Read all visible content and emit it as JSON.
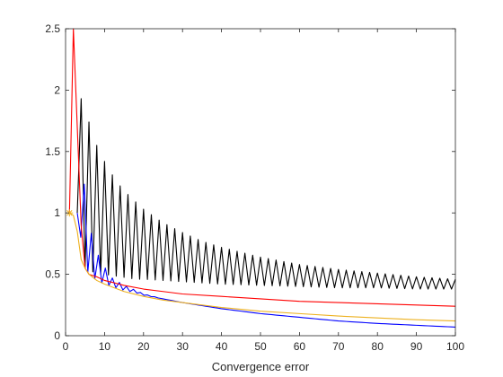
{
  "chart_data": {
    "type": "line",
    "title": "",
    "xlabel": "Convergence error",
    "ylabel": "",
    "xlim": [
      0,
      100
    ],
    "ylim": [
      0,
      2.5
    ],
    "xticks": [
      0,
      10,
      20,
      30,
      40,
      50,
      60,
      70,
      80,
      90,
      100
    ],
    "yticks": [
      0,
      0.5,
      1,
      1.5,
      2,
      2.5
    ],
    "xtick_labels": [
      "0",
      "10",
      "20",
      "30",
      "40",
      "50",
      "60",
      "70",
      "80",
      "90",
      "100"
    ],
    "ytick_labels": [
      "0",
      "0.5",
      "1",
      "1.5",
      "2",
      "2.5"
    ],
    "grid": false,
    "box": true,
    "series": [
      {
        "color": "#000000",
        "style": "oscillating",
        "x": [
          3,
          4,
          5,
          6,
          7,
          8,
          9,
          10,
          12,
          14,
          16,
          18,
          20,
          25,
          30,
          35,
          40,
          50,
          60,
          70,
          80,
          90,
          100
        ],
        "upper": [
          1.0,
          1.93,
          1.85,
          1.74,
          1.64,
          1.55,
          1.48,
          1.42,
          1.31,
          1.22,
          1.15,
          1.09,
          1.03,
          0.92,
          0.84,
          0.77,
          0.72,
          0.64,
          0.58,
          0.54,
          0.51,
          0.48,
          0.46
        ],
        "lower": [
          1.0,
          0.6,
          0.55,
          0.53,
          0.52,
          0.51,
          0.5,
          0.5,
          0.49,
          0.48,
          0.47,
          0.46,
          0.46,
          0.45,
          0.44,
          0.43,
          0.42,
          0.41,
          0.4,
          0.39,
          0.39,
          0.38,
          0.38
        ]
      },
      {
        "color": "#0000ff",
        "style": "damped",
        "x": [
          3,
          5,
          6,
          8,
          10,
          12,
          15,
          18,
          20,
          25,
          30,
          40,
          50,
          60,
          70,
          80,
          90,
          100
        ],
        "upper": [
          1.0,
          1.26,
          0.9,
          0.68,
          0.56,
          0.47,
          0.41,
          0.37,
          0.34,
          0.3,
          0.27,
          0.22,
          0.18,
          0.15,
          0.12,
          0.1,
          0.085,
          0.07
        ],
        "lower": [
          1.0,
          0.56,
          0.5,
          0.45,
          0.42,
          0.4,
          0.37,
          0.35,
          0.33,
          0.3,
          0.27,
          0.22,
          0.18,
          0.15,
          0.12,
          0.1,
          0.085,
          0.07
        ],
        "period": 1.8,
        "damp_until": 24
      },
      {
        "color": "#ff0000",
        "x": [
          1,
          2,
          3,
          4,
          5,
          6,
          8,
          10,
          15,
          20,
          25,
          30,
          40,
          50,
          60,
          70,
          80,
          90,
          100
        ],
        "y": [
          1.0,
          2.5,
          1.7,
          0.9,
          0.55,
          0.5,
          0.48,
          0.45,
          0.41,
          0.38,
          0.36,
          0.34,
          0.32,
          0.3,
          0.28,
          0.27,
          0.26,
          0.25,
          0.24
        ]
      },
      {
        "color": "#edb120",
        "x": [
          1,
          2,
          3,
          4,
          5,
          6,
          8,
          10,
          15,
          20,
          25,
          30,
          40,
          50,
          60,
          70,
          80,
          90,
          100
        ],
        "y": [
          1.0,
          0.98,
          0.85,
          0.62,
          0.55,
          0.5,
          0.45,
          0.42,
          0.36,
          0.32,
          0.29,
          0.27,
          0.23,
          0.2,
          0.18,
          0.16,
          0.145,
          0.13,
          0.12
        ]
      }
    ],
    "markers": [
      {
        "x": 1,
        "y": 1,
        "symbol": "*",
        "color": "#edb120"
      }
    ]
  }
}
